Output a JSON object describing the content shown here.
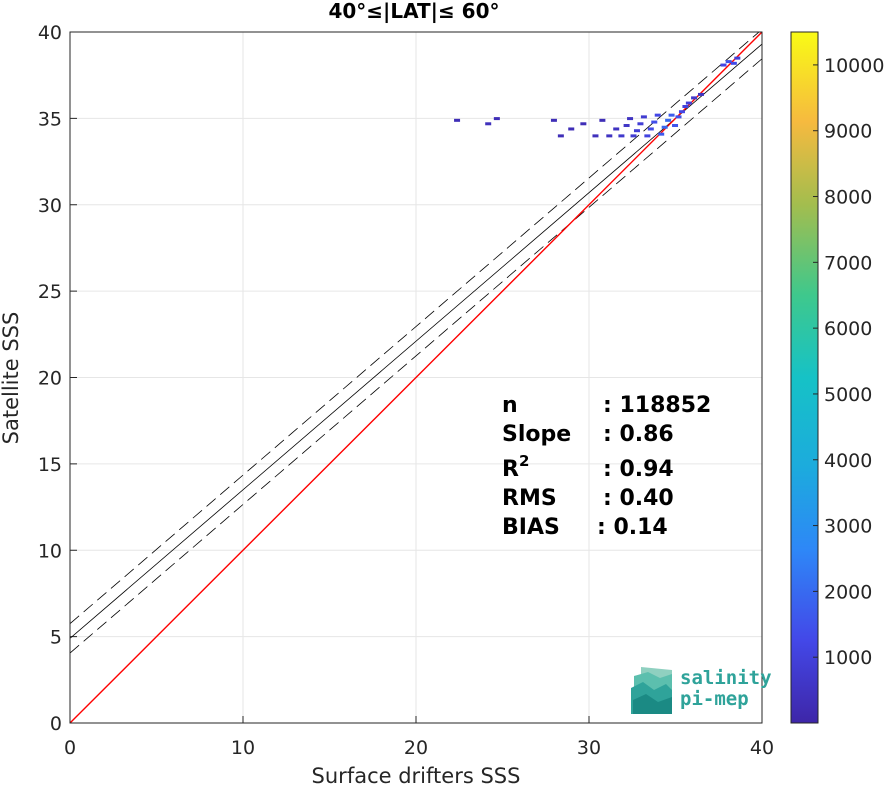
{
  "chart_data": {
    "type": "heatmap",
    "title": "40°≤|LAT|≤ 60°",
    "xlabel": "Surface drifters SSS",
    "ylabel": "Satellite SSS",
    "xlim": [
      0,
      40
    ],
    "ylim": [
      0,
      40
    ],
    "x_ticks": [
      "0",
      "10",
      "20",
      "30",
      "40"
    ],
    "y_ticks": [
      "0",
      "5",
      "10",
      "15",
      "20",
      "25",
      "30",
      "35",
      "40"
    ],
    "grid": true,
    "colorbar": {
      "min": 0,
      "max": 10500,
      "ticks": [
        "1000",
        "2000",
        "3000",
        "4000",
        "5000",
        "6000",
        "7000",
        "8000",
        "9000",
        "10000"
      ],
      "colormap": "parula"
    },
    "one_to_one_line": {
      "x": [
        0,
        40
      ],
      "y": [
        0,
        40
      ],
      "color": "#ff0000"
    },
    "regression_line": {
      "slope": 0.86,
      "intercept": 4.9,
      "color": "#000000"
    },
    "confidence_lines": [
      {
        "slope": 0.86,
        "intercept": 5.75
      },
      {
        "slope": 0.86,
        "intercept": 4.05
      }
    ],
    "density_cells": [
      {
        "x": 22.2,
        "y": 34.8,
        "v": 300
      },
      {
        "x": 24.0,
        "y": 34.6,
        "v": 400
      },
      {
        "x": 24.5,
        "y": 34.9,
        "v": 300
      },
      {
        "x": 27.8,
        "y": 34.8,
        "v": 300
      },
      {
        "x": 28.2,
        "y": 33.9,
        "v": 300
      },
      {
        "x": 28.8,
        "y": 34.3,
        "v": 300
      },
      {
        "x": 29.5,
        "y": 34.6,
        "v": 300
      },
      {
        "x": 30.2,
        "y": 33.9,
        "v": 400
      },
      {
        "x": 30.6,
        "y": 34.8,
        "v": 300
      },
      {
        "x": 31.0,
        "y": 33.9,
        "v": 500
      },
      {
        "x": 31.4,
        "y": 34.3,
        "v": 500
      },
      {
        "x": 31.7,
        "y": 33.9,
        "v": 700
      },
      {
        "x": 32.0,
        "y": 34.5,
        "v": 600
      },
      {
        "x": 32.2,
        "y": 34.9,
        "v": 500
      },
      {
        "x": 32.4,
        "y": 33.9,
        "v": 800
      },
      {
        "x": 32.6,
        "y": 34.2,
        "v": 900
      },
      {
        "x": 32.8,
        "y": 34.6,
        "v": 900
      },
      {
        "x": 33.0,
        "y": 35.0,
        "v": 800
      },
      {
        "x": 33.2,
        "y": 33.9,
        "v": 1100
      },
      {
        "x": 33.4,
        "y": 34.3,
        "v": 1300
      },
      {
        "x": 33.6,
        "y": 34.7,
        "v": 1400
      },
      {
        "x": 33.8,
        "y": 35.1,
        "v": 1200
      },
      {
        "x": 34.0,
        "y": 34.0,
        "v": 1600
      },
      {
        "x": 34.2,
        "y": 34.4,
        "v": 1900
      },
      {
        "x": 34.4,
        "y": 34.8,
        "v": 2000
      },
      {
        "x": 34.6,
        "y": 35.1,
        "v": 1700
      },
      {
        "x": 34.8,
        "y": 34.5,
        "v": 1500
      },
      {
        "x": 35.0,
        "y": 35.0,
        "v": 1400
      },
      {
        "x": 35.2,
        "y": 35.3,
        "v": 1200
      },
      {
        "x": 35.4,
        "y": 35.6,
        "v": 1000
      },
      {
        "x": 35.6,
        "y": 35.8,
        "v": 900
      },
      {
        "x": 35.9,
        "y": 36.1,
        "v": 700
      },
      {
        "x": 36.3,
        "y": 36.3,
        "v": 500
      },
      {
        "x": 37.6,
        "y": 38.0,
        "v": 1200
      },
      {
        "x": 37.9,
        "y": 38.2,
        "v": 1500
      },
      {
        "x": 38.2,
        "y": 38.1,
        "v": 1300
      },
      {
        "x": 38.4,
        "y": 38.4,
        "v": 900
      }
    ]
  },
  "stats": {
    "rows": [
      {
        "label": "n",
        "value": ": 118852"
      },
      {
        "label": "Slope",
        "value": ": 0.86"
      },
      {
        "label": "R",
        "sup": "2",
        "value": ": 0.94"
      },
      {
        "label": "RMS",
        "value": ": 0.40"
      },
      {
        "label": "BIAS",
        "value": ": 0.14"
      }
    ]
  },
  "logo": {
    "line1": "salinity",
    "line2": "pi-mep"
  }
}
